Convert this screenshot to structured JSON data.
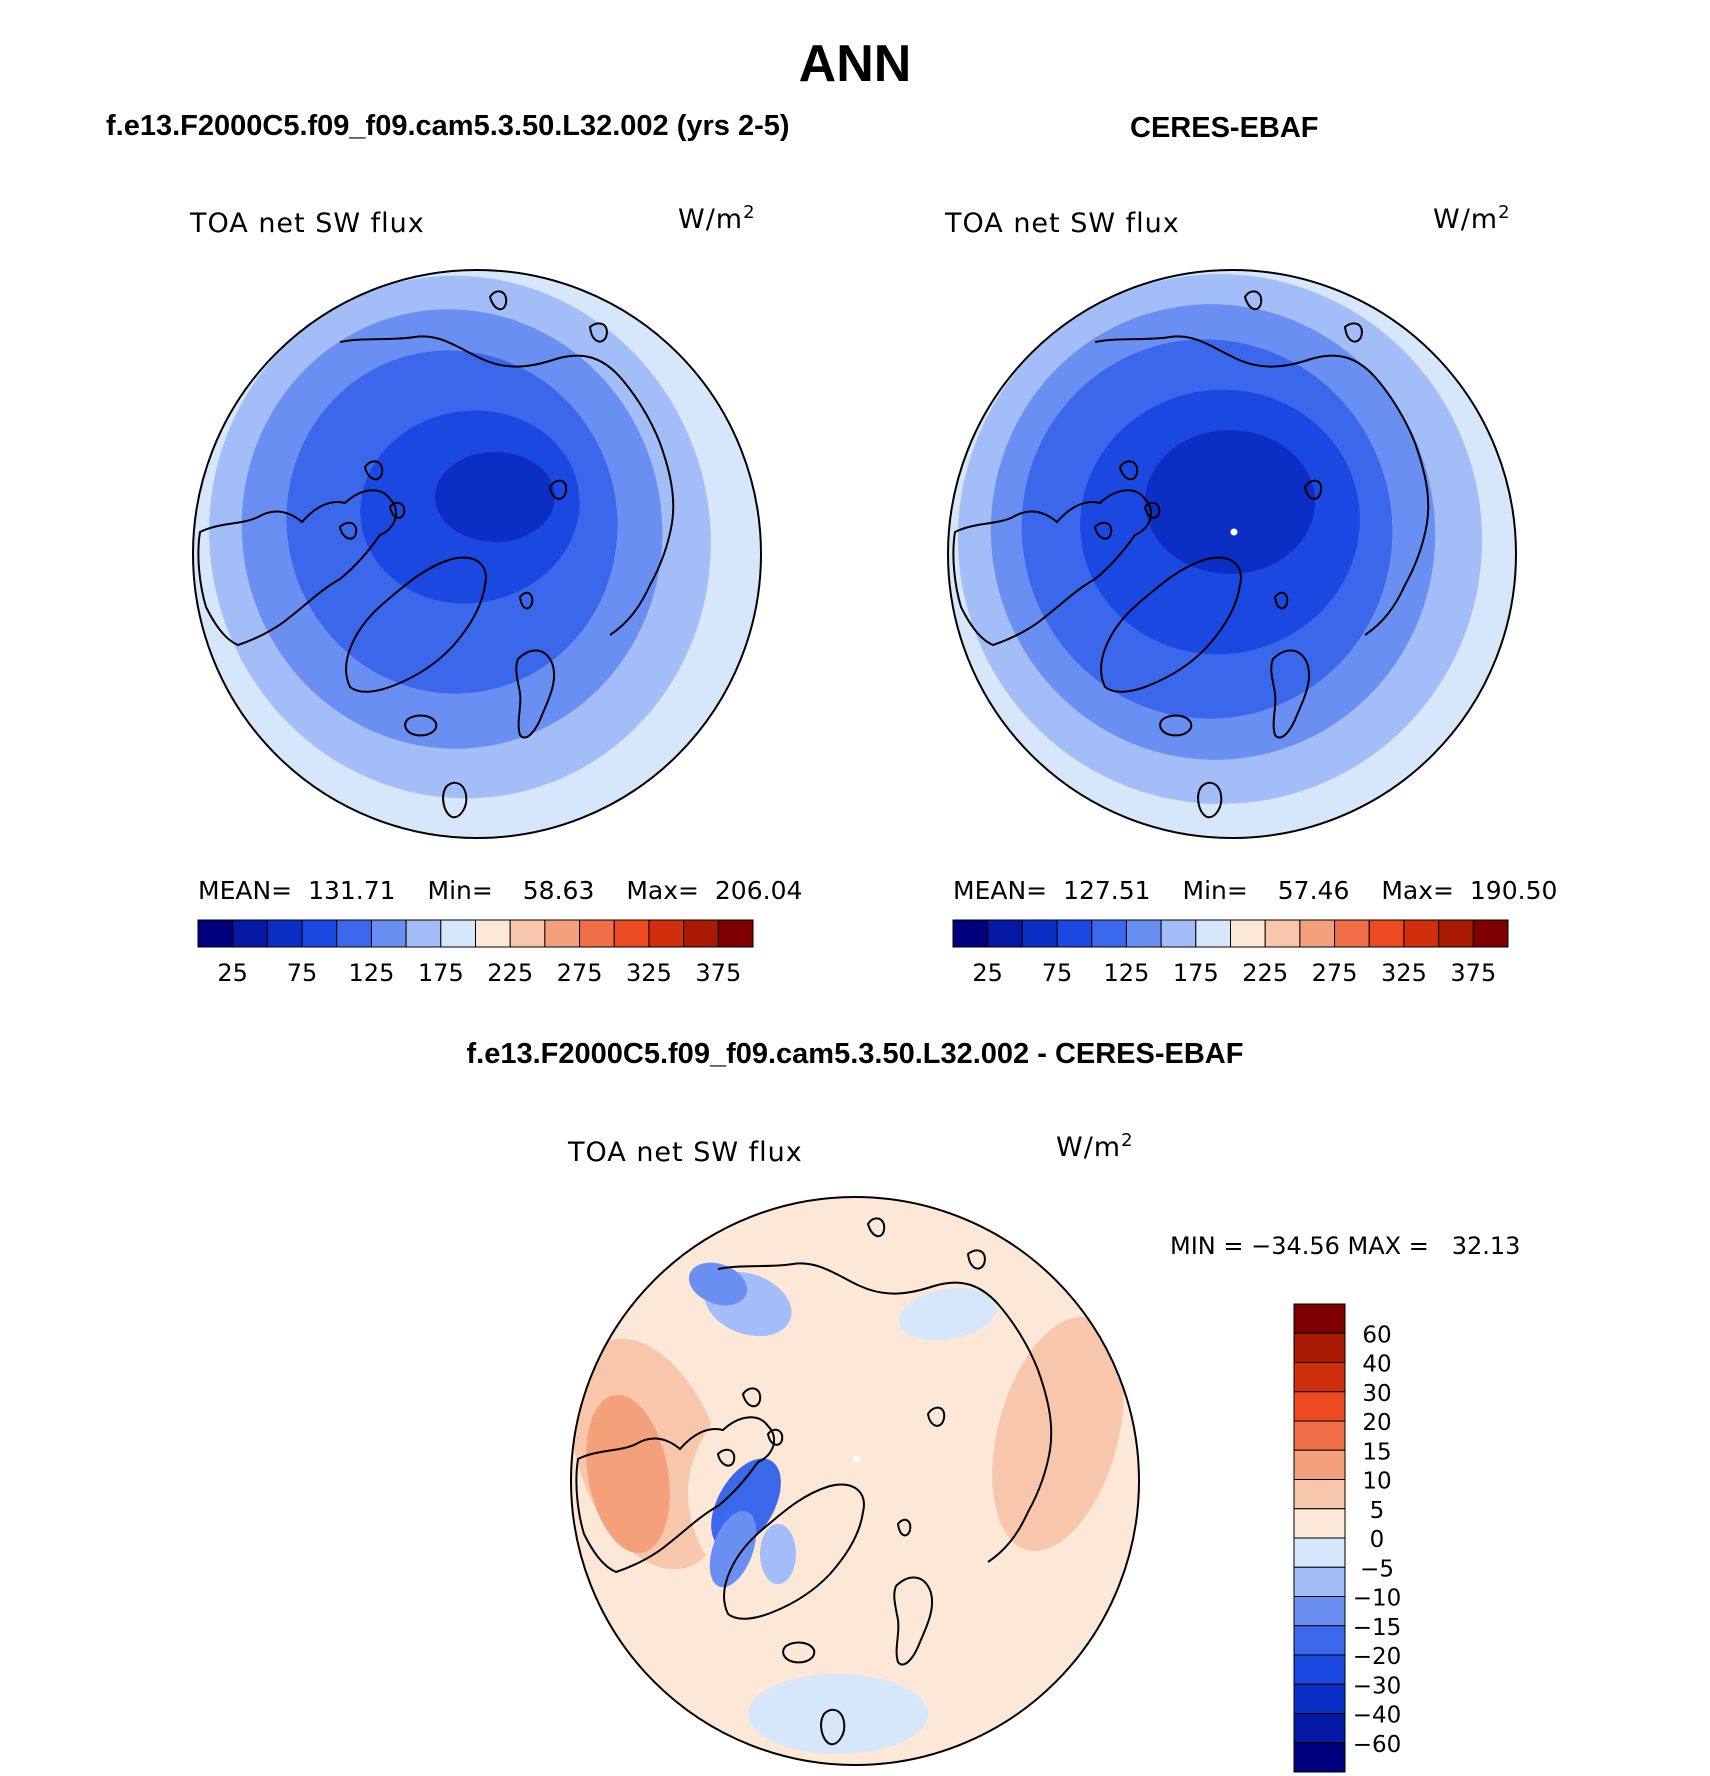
{
  "page": {
    "title": "ANN",
    "left_header": "f.e13.F2000C5.f09_f09.cam5.3.50.L32.002 (yrs 2-5)",
    "right_header": "CERES-EBAF",
    "diff_header": "f.e13.F2000C5.f09_f09.cam5.3.50.L32.002 - CERES-EBAF"
  },
  "colors": {
    "abs_palette": [
      "#00007f",
      "#0619a5",
      "#0b2fc4",
      "#1a48e0",
      "#3b67ea",
      "#6a8ff2",
      "#a3bdf8",
      "#d6e6fb",
      "#fde7d6",
      "#f8c6aa",
      "#f4a07a",
      "#f06e48",
      "#ec4a22",
      "#d12e0e",
      "#a91a05",
      "#7f0000"
    ],
    "diff_palette": [
      "#00007f",
      "#0619a5",
      "#0b2fc4",
      "#1a48e0",
      "#3b67ea",
      "#6a8ff2",
      "#a3bdf8",
      "#d6e6fb",
      "#fde7d6",
      "#f8c6aa",
      "#f4a07a",
      "#f06e48",
      "#ec4a22",
      "#d12e0e",
      "#a91a05",
      "#7f0000"
    ]
  },
  "chart_data": [
    {
      "type": "heatmap",
      "map": "polar stereographic, north polar region",
      "variable": "TOA net SW flux",
      "units": "W/m",
      "units_sup": "2",
      "stats": {
        "mean_label": "MEAN=",
        "mean": "131.71",
        "min_label": "Min=",
        "min": "58.63",
        "max_label": "Max=",
        "max": "206.04"
      },
      "levels": [
        "25",
        "50",
        "75",
        "100",
        "125",
        "150",
        "175",
        "200",
        "225",
        "250",
        "275",
        "300",
        "325",
        "350",
        "375"
      ],
      "tick_labels": [
        "25",
        "75",
        "125",
        "175",
        "225",
        "275",
        "325",
        "375"
      ]
    },
    {
      "type": "heatmap",
      "map": "polar stereographic, north polar region",
      "variable": "TOA net SW flux",
      "units": "W/m",
      "units_sup": "2",
      "stats": {
        "mean_label": "MEAN=",
        "mean": "127.51",
        "min_label": "Min=",
        "min": "57.46",
        "max_label": "Max=",
        "max": "190.50"
      },
      "levels": [
        "25",
        "50",
        "75",
        "100",
        "125",
        "150",
        "175",
        "200",
        "225",
        "250",
        "275",
        "300",
        "325",
        "350",
        "375"
      ],
      "tick_labels": [
        "25",
        "75",
        "125",
        "175",
        "225",
        "275",
        "325",
        "375"
      ]
    },
    {
      "type": "heatmap",
      "map": "polar stereographic, north polar region, difference",
      "variable": "TOA net SW flux",
      "units": "W/m",
      "units_sup": "2",
      "stats_line": "MIN = −34.56 MAX =   32.13",
      "levels": [
        "60",
        "40",
        "30",
        "20",
        "15",
        "10",
        "5",
        "0",
        "−5",
        "−10",
        "−15",
        "−20",
        "−30",
        "−40",
        "−60"
      ]
    }
  ]
}
